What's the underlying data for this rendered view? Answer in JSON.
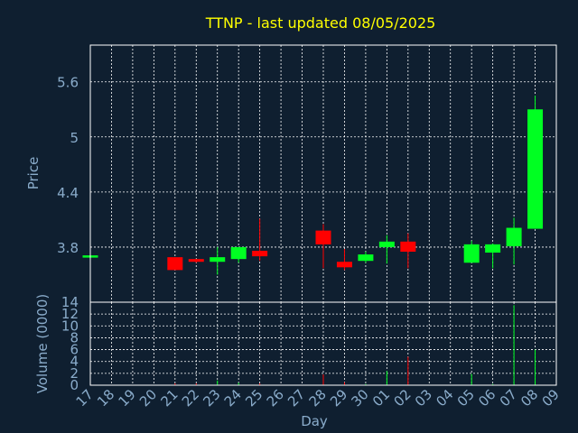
{
  "chart_data": {
    "title": "TTNP - last updated 08/05/2025",
    "type": "candlestick",
    "xlabel": "Day",
    "price_panel": {
      "ylabel": "Price",
      "ylim": [
        3.2,
        6.0
      ],
      "yticks": [
        "3.8",
        "4.4",
        "5",
        "5.6"
      ],
      "ytick_values": [
        3.8,
        4.4,
        5.0,
        5.6
      ],
      "grid": true
    },
    "volume_panel": {
      "ylabel": "Volume (0000)",
      "ylim": [
        0,
        14
      ],
      "yticks": [
        "0",
        "2",
        "4",
        "6",
        "8",
        "10",
        "12",
        "14"
      ],
      "ytick_values": [
        0,
        2,
        4,
        6,
        8,
        10,
        12,
        14
      ],
      "grid": true
    },
    "x_ticks": [
      "17",
      "18",
      "19",
      "20",
      "21",
      "22",
      "23",
      "24",
      "25",
      "26",
      "27",
      "28",
      "29",
      "30",
      "01",
      "02",
      "03",
      "04",
      "05",
      "06",
      "07",
      "08",
      "09"
    ],
    "candles": [
      {
        "day": "17",
        "open": 3.71,
        "close": 3.71,
        "high": 3.71,
        "low": 3.71,
        "volume": 0.0
      },
      {
        "day": "21",
        "open": 3.69,
        "close": 3.55,
        "high": 3.69,
        "low": 3.55,
        "volume": 0.3
      },
      {
        "day": "22",
        "open": 3.67,
        "close": 3.64,
        "high": 3.67,
        "low": 3.63,
        "volume": 0.3
      },
      {
        "day": "23",
        "open": 3.64,
        "close": 3.69,
        "high": 3.8,
        "low": 3.5,
        "volume": 0.8
      },
      {
        "day": "24",
        "open": 3.67,
        "close": 3.8,
        "high": 3.8,
        "low": 3.63,
        "volume": 0.4
      },
      {
        "day": "25",
        "open": 3.76,
        "close": 3.7,
        "high": 4.11,
        "low": 3.65,
        "volume": 0.3
      },
      {
        "day": "28",
        "open": 3.98,
        "close": 3.83,
        "high": 4.05,
        "low": 3.57,
        "volume": 1.8
      },
      {
        "day": "29",
        "open": 3.64,
        "close": 3.58,
        "high": 3.78,
        "low": 3.55,
        "volume": 0.5
      },
      {
        "day": "30",
        "open": 3.65,
        "close": 3.72,
        "high": 3.75,
        "low": 3.63,
        "volume": 0.2
      },
      {
        "day": "01",
        "open": 3.8,
        "close": 3.86,
        "high": 3.93,
        "low": 3.62,
        "volume": 2.4
      },
      {
        "day": "02",
        "open": 3.86,
        "close": 3.75,
        "high": 3.95,
        "low": 3.57,
        "volume": 4.8
      },
      {
        "day": "05",
        "open": 3.63,
        "close": 3.83,
        "high": 3.87,
        "low": 3.63,
        "volume": 1.9
      },
      {
        "day": "06",
        "open": 3.74,
        "close": 3.83,
        "high": 3.84,
        "low": 3.57,
        "volume": 0.2
      },
      {
        "day": "07",
        "open": 3.81,
        "close": 4.01,
        "high": 4.12,
        "low": 3.61,
        "volume": 13.5
      },
      {
        "day": "08",
        "open": 4.0,
        "close": 5.3,
        "high": 5.45,
        "low": 4.0,
        "volume": 6.0
      }
    ],
    "colors": {
      "background": "#0f1f30",
      "plot_border": "#ffffff",
      "grid": "#ffffff",
      "text": "#8aaccb",
      "title": "#ffff00",
      "up": "#00ff22",
      "down": "#ff0000"
    }
  }
}
